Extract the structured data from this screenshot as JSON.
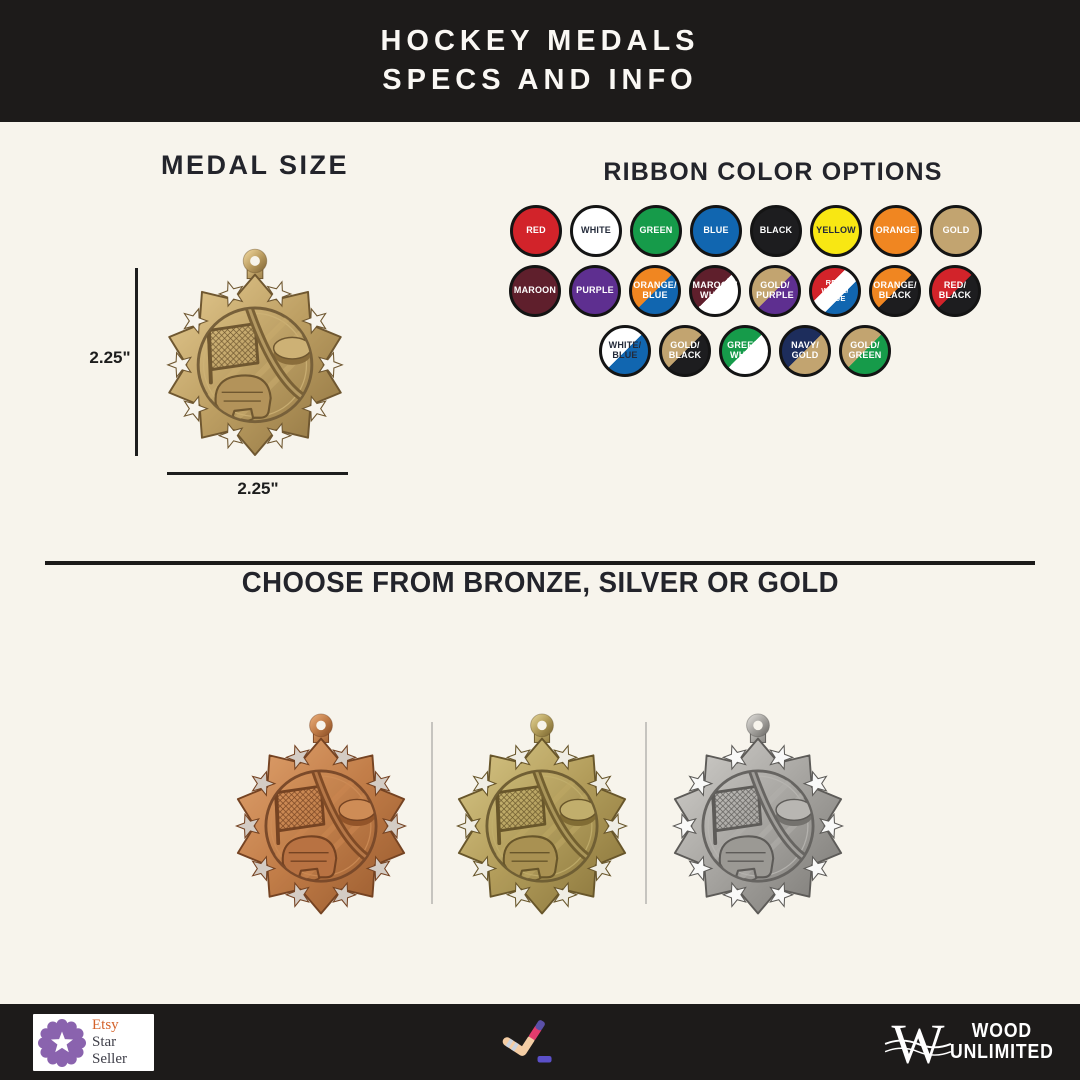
{
  "banner": {
    "line1": "HOCKEY MEDALS",
    "line2": "SPECS AND INFO"
  },
  "medal_size": {
    "heading": "MEDAL SIZE",
    "height_label": "2.25\"",
    "width_label": "2.25\""
  },
  "ribbons": {
    "heading": "RIBBON COLOR OPTIONS",
    "rows": [
      [
        {
          "label": "RED",
          "colors": [
            "#d2232a"
          ],
          "text": "light"
        },
        {
          "label": "WHITE",
          "colors": [
            "#ffffff"
          ],
          "text": "dark"
        },
        {
          "label": "GREEN",
          "colors": [
            "#169b4a"
          ],
          "text": "light"
        },
        {
          "label": "BLUE",
          "colors": [
            "#1166b0"
          ],
          "text": "light"
        },
        {
          "label": "BLACK",
          "colors": [
            "#1d1d1f"
          ],
          "text": "light"
        },
        {
          "label": "YELLOW",
          "colors": [
            "#f8e713"
          ],
          "text": "dark"
        },
        {
          "label": "ORANGE",
          "colors": [
            "#f08621"
          ],
          "text": "light"
        },
        {
          "label": "GOLD",
          "colors": [
            "#c2a470"
          ],
          "text": "light"
        }
      ],
      [
        {
          "label": "MAROON",
          "colors": [
            "#5f1f2c"
          ],
          "text": "light"
        },
        {
          "label": "PURPLE",
          "colors": [
            "#5e2f90"
          ],
          "text": "light"
        },
        {
          "label": "ORANGE/BLUE",
          "colors": [
            "#f08621",
            "#1166b0"
          ],
          "text": "light"
        },
        {
          "label": "MAROON/WHITE",
          "colors": [
            "#5f1f2c",
            "#ffffff"
          ],
          "text": "light"
        },
        {
          "label": "GOLD/PURPLE",
          "colors": [
            "#c2a470",
            "#5e2f90"
          ],
          "text": "light"
        },
        {
          "label": "RED/WHITE/BLUE",
          "colors": [
            "#d2232a",
            "#ffffff",
            "#1166b0"
          ],
          "text": "light"
        },
        {
          "label": "ORANGE/BLACK",
          "colors": [
            "#f08621",
            "#1d1d1f"
          ],
          "text": "light"
        },
        {
          "label": "RED/BLACK",
          "colors": [
            "#d2232a",
            "#1d1d1f"
          ],
          "text": "light"
        }
      ],
      [
        {
          "label": "WHITE/BLUE",
          "colors": [
            "#ffffff",
            "#1166b0"
          ],
          "text": "dark"
        },
        {
          "label": "GOLD/BLACK",
          "colors": [
            "#c2a470",
            "#1d1d1f"
          ],
          "text": "light"
        },
        {
          "label": "GREEN/WHITE",
          "colors": [
            "#169b4a",
            "#ffffff"
          ],
          "text": "light"
        },
        {
          "label": "NAVY/GOLD",
          "colors": [
            "#1d2d5c",
            "#c2a470"
          ],
          "text": "light"
        },
        {
          "label": "GOLD/GREEN",
          "colors": [
            "#c2a470",
            "#169b4a"
          ],
          "text": "light"
        }
      ]
    ]
  },
  "finishes": {
    "heading": "CHOOSE FROM BRONZE, SILVER OR GOLD",
    "medals": [
      "Bronze",
      "Gold",
      "Silver"
    ]
  },
  "footer": {
    "etsy_badge": {
      "line1": "Etsy",
      "line2": "Star Seller"
    },
    "center_icon": "hockey-stick-and-puck-icon",
    "logo": {
      "monogram": "W",
      "line1": "WOOD",
      "line2": "UNLIMITED"
    }
  },
  "colors": {
    "background": "#f7f4ec",
    "banner_bg": "#1d1b1a",
    "heading_text": "#23242b",
    "gold": "#bd9f63",
    "bronze": "#a2683f",
    "silver": "#a8a8a8",
    "etsy_seal": "#8a63ae",
    "etsy_orange": "#d4622a"
  }
}
